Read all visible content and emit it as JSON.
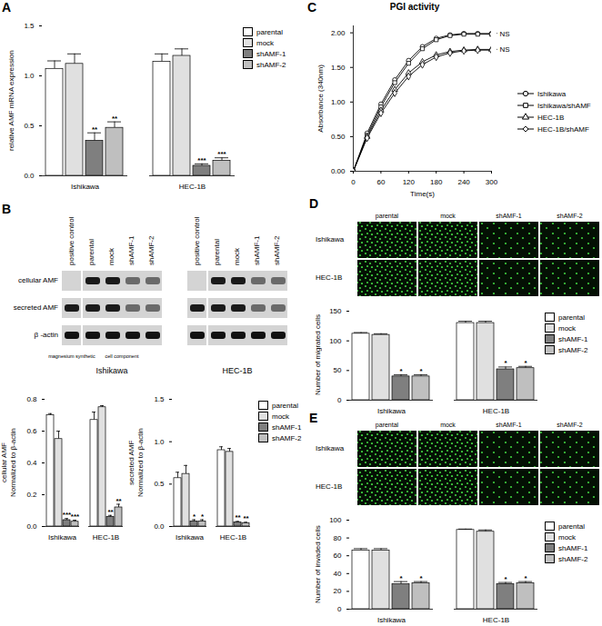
{
  "chart_data": [
    {
      "panel": "A",
      "type": "bar",
      "ylabel": "relative AMF mRNA expression",
      "categories": [
        "Ishikawa",
        "HEC-1B"
      ],
      "ylim": [
        0,
        1.5
      ],
      "yticks": [
        {
          "value": 0,
          "label": "0.0"
        },
        0.5,
        {
          "value": 1,
          "label": "1.0"
        },
        1.5
      ],
      "legend": "right",
      "series": [
        {
          "name": "parental",
          "color": "#ffffff",
          "values": [
            1.07,
            1.14
          ],
          "errors": [
            0.08,
            0.08
          ]
        },
        {
          "name": "mock",
          "color": "#e0e0e0",
          "values": [
            1.12,
            1.2
          ],
          "errors": [
            0.1,
            0.07
          ]
        },
        {
          "name": "shAMF-1",
          "color": "#7f7f7f",
          "values": [
            0.35,
            0.1
          ],
          "errors": [
            0.08,
            0.02
          ],
          "annotations": [
            "**",
            "***"
          ]
        },
        {
          "name": "shAMF-2",
          "color": "#bfbfbf",
          "values": [
            0.48,
            0.15
          ],
          "errors": [
            0.06,
            0.03
          ],
          "annotations": [
            "**",
            "***"
          ]
        }
      ]
    },
    {
      "panel": "C",
      "type": "line",
      "title": "PGI activity",
      "xlabel": "Time(s)",
      "ylabel": "Absorbance (340nm)",
      "x": [
        0,
        30,
        60,
        90,
        120,
        150,
        180,
        210,
        240,
        270,
        300
      ],
      "xlim": [
        0,
        300
      ],
      "xticks": [
        0,
        60,
        120,
        180,
        240,
        300
      ],
      "ylim": [
        0,
        2.1
      ],
      "yticks": [
        {
          "value": 0,
          "label": "0.00"
        },
        {
          "value": 0.5,
          "label": "0.50"
        },
        {
          "value": 1,
          "label": "1.00"
        },
        {
          "value": 1.5,
          "label": "1.50"
        },
        {
          "value": 2,
          "label": "2.00"
        }
      ],
      "legend": "right",
      "series": [
        {
          "name": "Ishikawa",
          "color": "#000000",
          "marker": "circle",
          "values": [
            0,
            0.55,
            0.97,
            1.32,
            1.6,
            1.8,
            1.92,
            1.97,
            1.99,
            1.99,
            1.99
          ]
        },
        {
          "name": "Ishikawa/shAMF",
          "color": "#000000",
          "marker": "square",
          "values": [
            0,
            0.52,
            0.93,
            1.28,
            1.56,
            1.77,
            1.9,
            1.96,
            1.98,
            1.98,
            1.98
          ]
        },
        {
          "name": "HEC-1B",
          "color": "#000000",
          "marker": "triangle",
          "values": [
            0,
            0.5,
            0.88,
            1.18,
            1.42,
            1.58,
            1.68,
            1.73,
            1.75,
            1.76,
            1.76
          ]
        },
        {
          "name": "HEC-1B/shAMF",
          "color": "#000000",
          "marker": "diamond",
          "values": [
            0,
            0.48,
            0.84,
            1.13,
            1.37,
            1.54,
            1.65,
            1.71,
            1.74,
            1.75,
            1.75
          ]
        }
      ],
      "annotations": [
        {
          "text": "NS",
          "series": [
            "Ishikawa",
            "Ishikawa/shAMF"
          ]
        },
        {
          "text": "NS",
          "series": [
            "HEC-1B",
            "HEC-1B/shAMF"
          ]
        }
      ]
    },
    {
      "type": "bar",
      "ylabel": "cellular AMF\nNormalized to β-actin",
      "categories": [
        "Ishikawa",
        "HEC-1B"
      ],
      "ylim": [
        0,
        0.8
      ],
      "yticks": [
        {
          "value": 0,
          "label": "0.0"
        },
        0.2,
        0.4,
        0.6,
        0.8
      ],
      "series": [
        {
          "name": "parental",
          "color": "#ffffff",
          "values": [
            0.7,
            0.67
          ],
          "errors": [
            0.01,
            0.05
          ]
        },
        {
          "name": "mock",
          "color": "#e0e0e0",
          "values": [
            0.55,
            0.75
          ],
          "errors": [
            0.05,
            0.01
          ]
        },
        {
          "name": "shAMF-1",
          "color": "#7f7f7f",
          "values": [
            0.04,
            0.06
          ],
          "errors": [
            0.01,
            0.01
          ],
          "annotations": [
            "***",
            "**"
          ]
        },
        {
          "name": "shAMF-2",
          "color": "#bfbfbf",
          "values": [
            0.03,
            0.12
          ],
          "errors": [
            0.01,
            0.02
          ],
          "annotations": [
            "***",
            "**"
          ]
        }
      ]
    },
    {
      "type": "bar",
      "ylabel": "secreted AMF\nNormalized to β-actin",
      "categories": [
        "Ishikawa",
        "HEC-1B"
      ],
      "ylim": [
        0,
        1.5
      ],
      "yticks": [
        {
          "value": 0,
          "label": "0.0"
        },
        0.5,
        {
          "value": 1,
          "label": "1.0"
        },
        1.5
      ],
      "legend": "right",
      "series": [
        {
          "name": "parental",
          "color": "#ffffff",
          "values": [
            0.57,
            0.9
          ],
          "errors": [
            0.07,
            0.04
          ]
        },
        {
          "name": "mock",
          "color": "#e0e0e0",
          "values": [
            0.62,
            0.88
          ],
          "errors": [
            0.1,
            0.04
          ]
        },
        {
          "name": "shAMF-1",
          "color": "#7f7f7f",
          "values": [
            0.06,
            0.05
          ],
          "errors": [
            0.02,
            0.01
          ],
          "annotations": [
            "*",
            "**"
          ]
        },
        {
          "name": "shAMF-2",
          "color": "#bfbfbf",
          "values": [
            0.06,
            0.04
          ],
          "errors": [
            0.02,
            0.01
          ],
          "annotations": [
            "*",
            "**"
          ]
        }
      ]
    },
    {
      "type": "bar",
      "ylabel": "Number of migrated cells",
      "categories": [
        "Ishikawa",
        "HEC-1B"
      ],
      "ylim": [
        0,
        150
      ],
      "yticks": [
        0,
        50,
        100,
        150
      ],
      "legend": "right",
      "series": [
        {
          "name": "parental",
          "color": "#ffffff",
          "values": [
            112,
            130
          ],
          "errors": [
            2,
            3
          ]
        },
        {
          "name": "mock",
          "color": "#e0e0e0",
          "values": [
            110,
            130
          ],
          "errors": [
            2,
            3
          ]
        },
        {
          "name": "shAMF-1",
          "color": "#7f7f7f",
          "values": [
            40,
            52
          ],
          "errors": [
            3,
            4
          ],
          "annotations": [
            "*",
            "*"
          ]
        },
        {
          "name": "shAMF-2",
          "color": "#bfbfbf",
          "values": [
            40,
            54
          ],
          "errors": [
            3,
            3
          ],
          "annotations": [
            "*",
            "*"
          ]
        }
      ]
    },
    {
      "type": "bar",
      "ylabel": "Number of invaded cells",
      "categories": [
        "Ishikawa",
        "HEC-1B"
      ],
      "ylim": [
        0,
        100
      ],
      "yticks": [
        0,
        20,
        40,
        60,
        80,
        100
      ],
      "legend": "right",
      "series": [
        {
          "name": "parental",
          "color": "#ffffff",
          "values": [
            66,
            89
          ],
          "errors": [
            2,
            1
          ]
        },
        {
          "name": "mock",
          "color": "#e0e0e0",
          "values": [
            66,
            87
          ],
          "errors": [
            2,
            2
          ]
        },
        {
          "name": "shAMF-1",
          "color": "#7f7f7f",
          "values": [
            28,
            28
          ],
          "errors": [
            3,
            2
          ],
          "annotations": [
            "*",
            "*"
          ]
        },
        {
          "name": "shAMF-2",
          "color": "#bfbfbf",
          "values": [
            29,
            29
          ],
          "errors": [
            2,
            2
          ],
          "annotations": [
            "*",
            "*"
          ]
        }
      ]
    }
  ],
  "blots": {
    "panel": "B",
    "columns": [
      "positive control",
      "parental",
      "mock",
      "shAMF-1",
      "shAMF-2"
    ],
    "rows": [
      "cellular AMF",
      "secreted AMF",
      "β -actin"
    ],
    "cells": [
      "Ishikawa",
      "HEC-1B"
    ],
    "notes": [
      "magnesium synthetic",
      "cell component"
    ]
  },
  "images": [
    {
      "panel": "D",
      "rows": [
        "Ishikawa",
        "HEC-1B"
      ],
      "columns": [
        "parental",
        "mock",
        "shAMF-1",
        "shAMF-2"
      ]
    },
    {
      "panel": "E",
      "rows": [
        "Ishikawa",
        "HEC-1B"
      ],
      "columns": [
        "parental",
        "mock",
        "shAMF-1",
        "shAMF-2"
      ]
    }
  ]
}
